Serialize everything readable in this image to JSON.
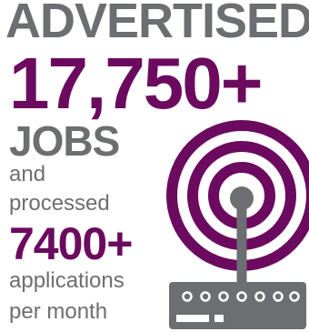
{
  "headline": "ADVERTISED",
  "jobs_count": "17,750+",
  "jobs_label": "JOBS",
  "connector": "and",
  "processed_label": "processed",
  "applications_count": "7400+",
  "applications_label": "applications",
  "period_label": "per month",
  "icon": "wifi-router-icon",
  "colors": {
    "accent_purple": "#6b0a5f",
    "gray": "#6d6e71"
  }
}
